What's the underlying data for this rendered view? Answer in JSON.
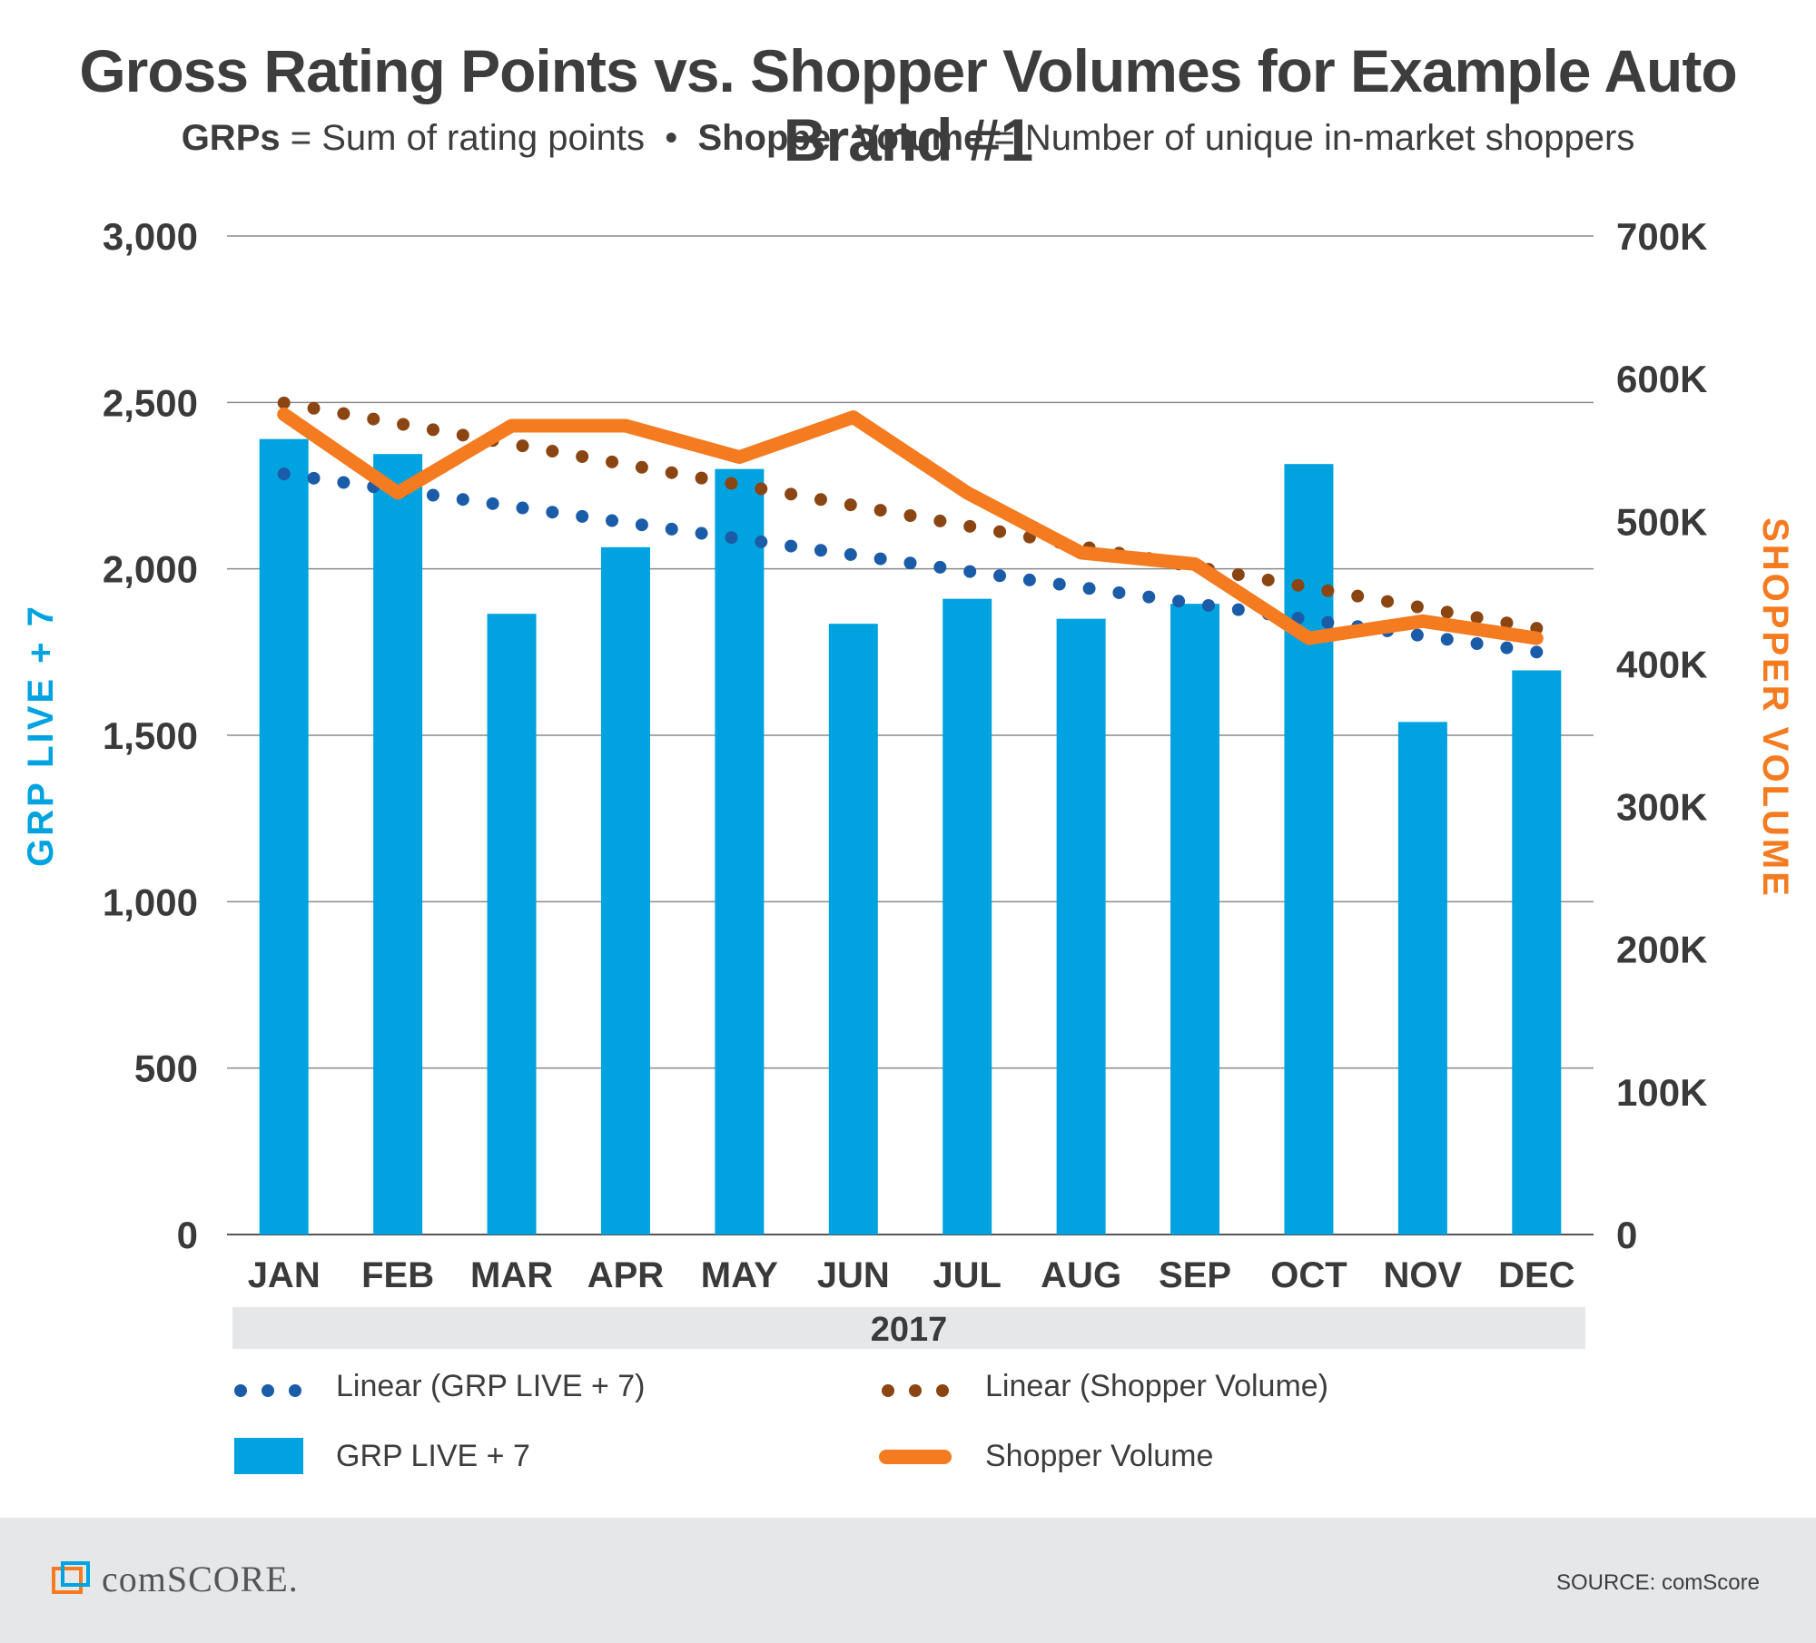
{
  "title": "Gross Rating Points vs. Shopper Volumes for Example Auto Brand #1",
  "subtitle": {
    "term1": "GRPs",
    "def1": " = Sum of rating points",
    "separator": "•",
    "term2": "Shopper Volume",
    "def2": " = Number of unique in-market shoppers"
  },
  "chart_data": {
    "type": "bar",
    "categories": [
      "JAN",
      "FEB",
      "MAR",
      "APR",
      "MAY",
      "JUN",
      "JUL",
      "AUG",
      "SEP",
      "OCT",
      "NOV",
      "DEC"
    ],
    "xlabel": "2017",
    "y_left": {
      "label": "GRP LIVE + 7",
      "ticks": [
        "0",
        "500",
        "1,000",
        "1,500",
        "2,000",
        "2,500",
        "3,000"
      ],
      "range": [
        0,
        3000
      ]
    },
    "y_right": {
      "label": "SHOPPER VOLUME",
      "ticks": [
        "0",
        "100K",
        "200K",
        "300K",
        "400K",
        "500K",
        "600K",
        "700K"
      ],
      "range": [
        0,
        700000
      ]
    },
    "series": [
      {
        "name": "GRP LIVE + 7",
        "kind": "bar",
        "axis": "left",
        "values": [
          2390,
          2345,
          1865,
          2065,
          2300,
          1835,
          1910,
          1850,
          1895,
          2315,
          1540,
          1695
        ]
      },
      {
        "name": "Shopper Volume",
        "kind": "line",
        "axis": "right",
        "values": [
          575000,
          520000,
          567000,
          567000,
          545000,
          573000,
          520000,
          478000,
          470000,
          418000,
          430000,
          418000
        ]
      },
      {
        "name": "Linear (GRP LIVE + 7)",
        "kind": "trend",
        "axis": "left",
        "start": 2285,
        "end": 1750
      },
      {
        "name": "Linear (Shopper Volume)",
        "kind": "trend",
        "axis": "right",
        "start": 583000,
        "end": 425000
      }
    ],
    "colors": {
      "bar": "#00a3e0",
      "line": "#f47b20",
      "trend_grp": "#1b5ca8",
      "trend_shopper": "#8b4513",
      "left_axis_label": "#00a3e0",
      "right_axis_label": "#f47b20"
    }
  },
  "legend": {
    "linear_grp": "Linear (GRP LIVE + 7)",
    "linear_shopper": "Linear (Shopper Volume)",
    "grp": "GRP LIVE + 7",
    "shopper": "Shopper Volume"
  },
  "footer": {
    "brand": "comSCORE.",
    "source": "SOURCE: comScore"
  }
}
